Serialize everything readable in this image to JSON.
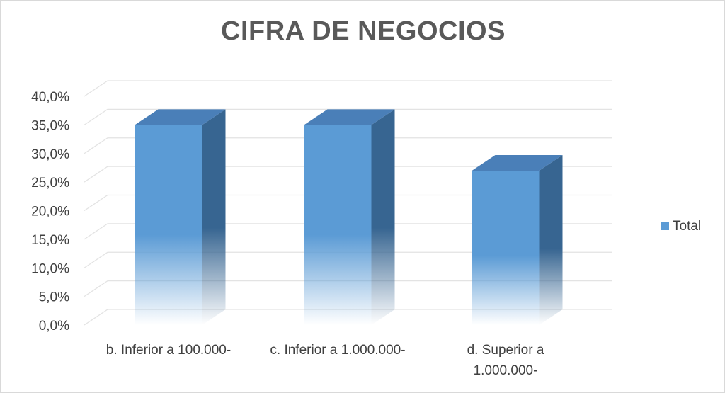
{
  "chart_data": {
    "type": "bar",
    "title": "CIFRA DE NEGOCIOS",
    "xlabel": "",
    "ylabel": "",
    "categories": [
      [
        "b. Inferior a 100.000-"
      ],
      [
        "c. Inferior a 1.000.000-"
      ],
      [
        "d. Superior a",
        "1.000.000-"
      ]
    ],
    "series": [
      {
        "name": "Total",
        "values": [
          35.0,
          35.0,
          27.0
        ],
        "color": "#5b9bd5"
      }
    ],
    "ylim": [
      0,
      40
    ],
    "yticks": [
      "0,0%",
      "5,0%",
      "10,0%",
      "15,0%",
      "20,0%",
      "25,0%",
      "30,0%",
      "35,0%",
      "40,0%"
    ],
    "grid": true,
    "legend_position": "right",
    "style": "3d-column"
  }
}
